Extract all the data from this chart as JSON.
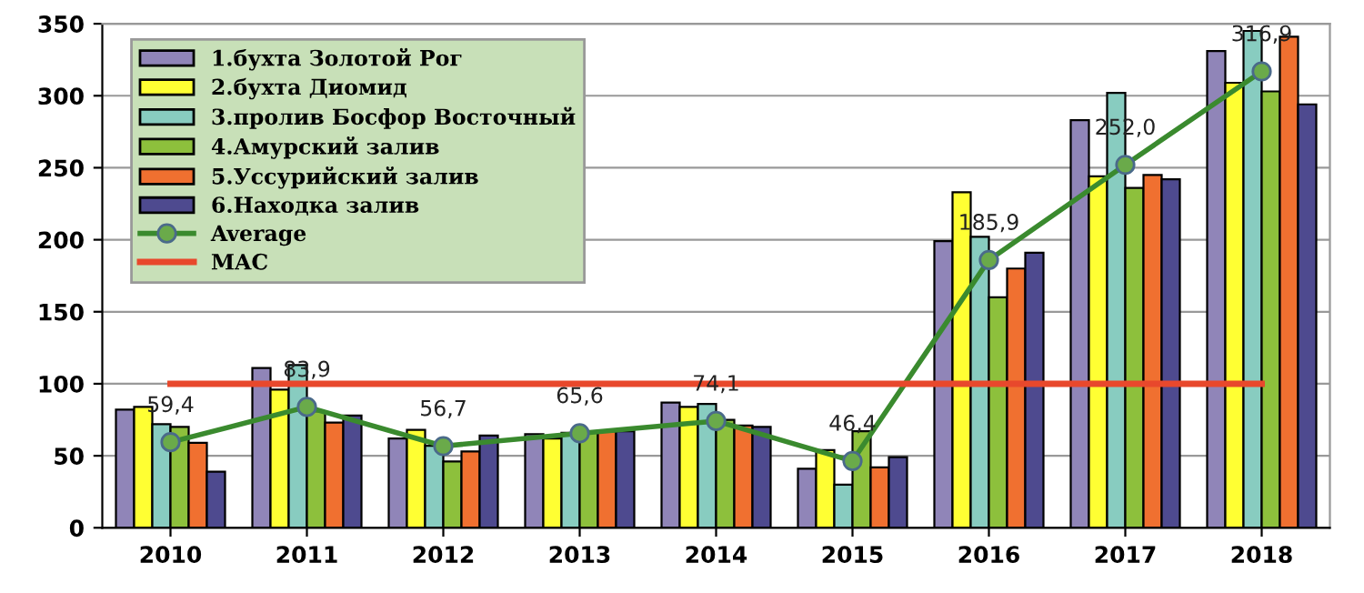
{
  "chart_data": {
    "type": "bar",
    "categories": [
      "2010",
      "2011",
      "2012",
      "2013",
      "2014",
      "2015",
      "2016",
      "2017",
      "2018"
    ],
    "ylim": [
      0,
      350
    ],
    "yticks": [
      0,
      50,
      100,
      150,
      200,
      250,
      300,
      350
    ],
    "grid": "y",
    "legend": "top left",
    "series": [
      {
        "name": "1.бухта Золотой Рог",
        "color": "#9085b8",
        "values": [
          82,
          111,
          62,
          65,
          87,
          41,
          199,
          283,
          331
        ]
      },
      {
        "name": "2.бухта Диомид",
        "color": "#ffff33",
        "values": [
          84,
          96,
          68,
          62,
          84,
          54,
          233,
          244,
          309
        ]
      },
      {
        "name": "3.пролив Босфор Восточный",
        "color": "#88ccc0",
        "values": [
          72,
          113,
          57,
          66,
          86,
          30,
          202,
          302,
          345
        ]
      },
      {
        "name": "4.Амурский залив",
        "color": "#8dc03c",
        "values": [
          70,
          81,
          46,
          67,
          75,
          67,
          160,
          236,
          303
        ]
      },
      {
        "name": "5.Уссурийский залив",
        "color": "#f07030",
        "values": [
          59,
          73,
          53,
          67,
          71,
          42,
          180,
          245,
          341
        ]
      },
      {
        "name": "6.Находка залив",
        "color": "#4e4a8f",
        "values": [
          39,
          78,
          64,
          67,
          70,
          49,
          191,
          242,
          294
        ]
      },
      {
        "name": "Average",
        "type": "line",
        "color": "#3a8a2e",
        "marker": "circle",
        "values": [
          59.4,
          83.9,
          56.7,
          65.6,
          74.1,
          46.4,
          185.9,
          252.0,
          316.9
        ],
        "value_labels": [
          "59,4",
          "83,9",
          "56,7",
          "65,6",
          "74,1",
          "46,4",
          "185,9",
          "252,0",
          "316,9"
        ]
      },
      {
        "name": "MAC",
        "type": "line",
        "color": "#e8482c",
        "marker": "none",
        "values": [
          100,
          100,
          100,
          100,
          100,
          100,
          100,
          100,
          100
        ]
      }
    ]
  }
}
